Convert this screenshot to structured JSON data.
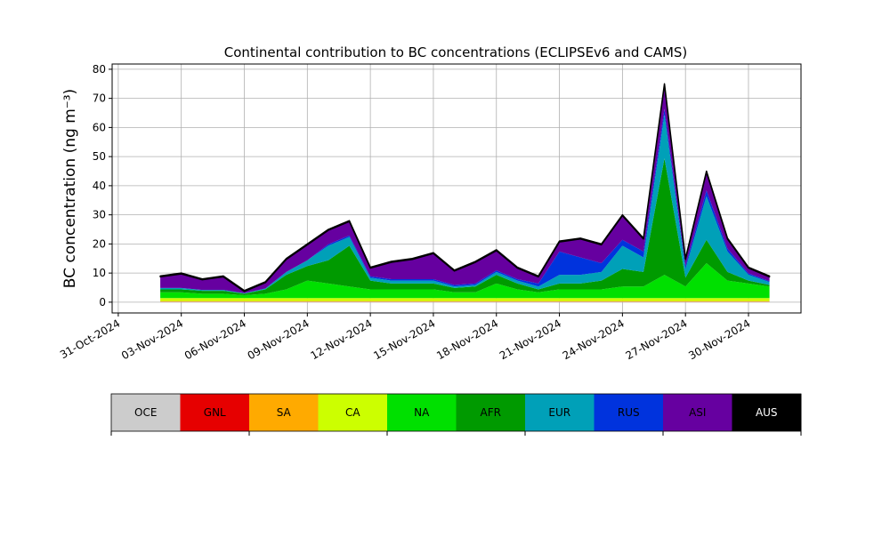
{
  "chart_data": {
    "type": "stacked-area",
    "title": "Continental contribution to BC concentrations (ECLIPSEv6 and CAMS)",
    "y_label": "BC concentration (ng m⁻³)",
    "x": [
      "2024-11-02",
      "2024-11-03",
      "2024-11-04",
      "2024-11-05",
      "2024-11-06",
      "2024-11-07",
      "2024-11-08",
      "2024-11-09",
      "2024-11-10",
      "2024-11-11",
      "2024-11-12",
      "2024-11-13",
      "2024-11-14",
      "2024-11-15",
      "2024-11-16",
      "2024-11-17",
      "2024-11-18",
      "2024-11-19",
      "2024-11-20",
      "2024-11-21",
      "2024-11-22",
      "2024-11-23",
      "2024-11-24",
      "2024-11-25",
      "2024-11-26",
      "2024-11-27",
      "2024-11-28",
      "2024-11-29",
      "2024-11-30",
      "2024-12-01"
    ],
    "series": [
      {
        "name": "OCE",
        "color": "#cccccc",
        "values": [
          0.1,
          0.1,
          0.1,
          0.1,
          0.1,
          0.1,
          0.1,
          0.1,
          0.1,
          0.1,
          0.1,
          0.1,
          0.1,
          0.1,
          0.1,
          0.1,
          0.1,
          0.1,
          0.1,
          0.1,
          0.1,
          0.1,
          0.1,
          0.1,
          0.1,
          0.1,
          0.1,
          0.1,
          0.1,
          0.1
        ]
      },
      {
        "name": "GNL",
        "color": "#e60000",
        "values": [
          0.1,
          0.1,
          0.1,
          0.1,
          0.1,
          0.1,
          0.1,
          0.1,
          0.1,
          0.1,
          0.1,
          0.1,
          0.1,
          0.1,
          0.1,
          0.1,
          0.1,
          0.1,
          0.1,
          0.1,
          0.1,
          0.1,
          0.1,
          0.1,
          0.1,
          0.1,
          0.1,
          0.1,
          0.1,
          0.1
        ]
      },
      {
        "name": "SA",
        "color": "#ffaa00",
        "values": [
          0.2,
          0.2,
          0.2,
          0.2,
          0.2,
          0.2,
          0.2,
          0.2,
          0.2,
          0.2,
          0.2,
          0.2,
          0.2,
          0.2,
          0.2,
          0.2,
          0.2,
          0.2,
          0.2,
          0.2,
          0.2,
          0.2,
          0.2,
          0.2,
          0.2,
          0.2,
          0.2,
          0.2,
          0.2,
          0.2
        ]
      },
      {
        "name": "CA",
        "color": "#ccff00",
        "values": [
          1,
          1,
          1,
          1,
          1,
          1,
          1,
          1,
          1,
          1,
          1,
          1,
          1,
          1,
          1,
          1,
          1,
          1,
          1,
          1,
          1,
          1,
          1,
          1,
          1,
          1,
          1,
          1,
          1,
          1
        ]
      },
      {
        "name": "NA",
        "color": "#00e000",
        "values": [
          2,
          2,
          1.5,
          1.5,
          1,
          1.5,
          3,
          6,
          5,
          4,
          3,
          3,
          3,
          3,
          2,
          2,
          5,
          3,
          2,
          3,
          3,
          3,
          4,
          4,
          8,
          4,
          12,
          6,
          5,
          4
        ]
      },
      {
        "name": "AFR",
        "color": "#009a00",
        "values": [
          1,
          1,
          1,
          1,
          0.5,
          1.5,
          5,
          5,
          8,
          14,
          3,
          2,
          2,
          2,
          1.5,
          2,
          3,
          2,
          1,
          2,
          2,
          3,
          6,
          5,
          40,
          3,
          8,
          3,
          1,
          0.5
        ]
      },
      {
        "name": "EUR",
        "color": "#00a0b8",
        "values": [
          0.5,
          0.5,
          0.3,
          0.3,
          0.2,
          0.3,
          1,
          2,
          5,
          3,
          1,
          1,
          1,
          1,
          0.5,
          0.5,
          1,
          1,
          1,
          3,
          3,
          3,
          8,
          5,
          15,
          3,
          15,
          7,
          2,
          1
        ]
      },
      {
        "name": "RUS",
        "color": "#0033dd",
        "values": [
          0,
          0,
          0,
          0,
          0,
          0,
          0,
          0,
          0.5,
          0.5,
          0.5,
          0.5,
          0.5,
          0.5,
          0.5,
          0.5,
          0.5,
          0.5,
          1,
          8,
          6,
          3,
          2,
          2,
          2,
          1,
          2,
          1,
          0.5,
          0.3
        ]
      },
      {
        "name": "ASI",
        "color": "#6600a0",
        "values": [
          3.8,
          4.8,
          3.5,
          4.5,
          0.6,
          2,
          4.3,
          5.3,
          4.8,
          4.8,
          2.8,
          5.8,
          6.8,
          8.8,
          4.8,
          7.3,
          6.8,
          3.8,
          2.3,
          3.3,
          6.3,
          6.3,
          8.3,
          4.3,
          8.3,
          2.3,
          6.3,
          3.3,
          1.8,
          1.5
        ]
      },
      {
        "name": "AUS",
        "color": "#000000",
        "values": [
          0.3,
          0.3,
          0.3,
          0.3,
          0.3,
          0.3,
          0.3,
          0.3,
          0.3,
          0.3,
          0.3,
          0.3,
          0.3,
          0.3,
          0.3,
          0.3,
          0.3,
          0.3,
          0.3,
          0.3,
          0.3,
          0.3,
          0.3,
          0.3,
          0.3,
          0.3,
          0.3,
          0.3,
          0.3,
          0.3
        ]
      }
    ],
    "xlim": [
      "2024-10-30T17:00",
      "2024-12-02T12:00"
    ],
    "xticks": [
      {
        "value": "2024-10-31",
        "label": "31-Oct-2024"
      },
      {
        "value": "2024-11-03",
        "label": "03-Nov-2024"
      },
      {
        "value": "2024-11-06",
        "label": "06-Nov-2024"
      },
      {
        "value": "2024-11-09",
        "label": "09-Nov-2024"
      },
      {
        "value": "2024-11-12",
        "label": "12-Nov-2024"
      },
      {
        "value": "2024-11-15",
        "label": "15-Nov-2024"
      },
      {
        "value": "2024-11-18",
        "label": "18-Nov-2024"
      },
      {
        "value": "2024-11-21",
        "label": "21-Nov-2024"
      },
      {
        "value": "2024-11-24",
        "label": "24-Nov-2024"
      },
      {
        "value": "2024-11-27",
        "label": "27-Nov-2024"
      },
      {
        "value": "2024-11-30",
        "label": "30-Nov-2024"
      }
    ],
    "ylim": [
      -3.7,
      81.8
    ],
    "yticks": [
      0,
      10,
      20,
      30,
      40,
      50,
      60,
      70,
      80
    ],
    "grid": true
  }
}
